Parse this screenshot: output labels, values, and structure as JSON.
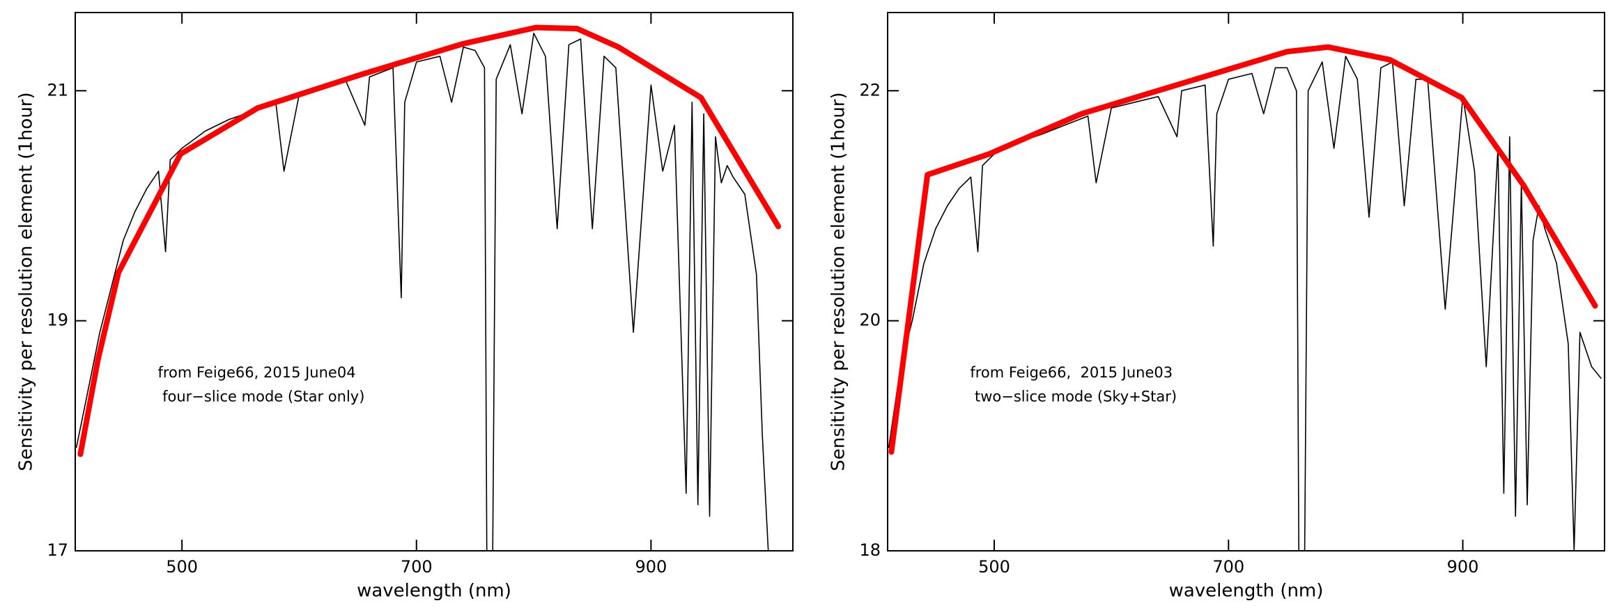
{
  "chart_data": [
    {
      "type": "line",
      "xlabel": "wavelength (nm)",
      "ylabel": "Sensitivity per resolution element (1hour)",
      "annotations": [
        "from Feige66, 2015 June04",
        " four−slice mode (Star only)"
      ],
      "xlim": [
        409,
        1021
      ],
      "ylim": [
        17,
        21.68
      ],
      "xticks": [
        500,
        700,
        900
      ],
      "yticks": [
        17,
        19,
        21
      ],
      "series": [
        {
          "color": "#000000",
          "x": [
            410,
            420,
            430,
            440,
            450,
            460,
            470,
            480,
            486,
            490,
            500,
            520,
            540,
            560,
            580,
            587,
            600,
            620,
            640,
            656,
            660,
            680,
            687,
            690,
            700,
            720,
            730,
            740,
            750,
            758,
            760,
            765,
            768,
            780,
            790,
            800,
            810,
            820,
            830,
            840,
            850,
            860,
            870,
            885,
            900,
            910,
            920,
            930,
            935,
            940,
            945,
            950,
            955,
            960,
            965,
            970,
            980,
            990,
            995,
            1000
          ],
          "values": [
            17.9,
            18.4,
            18.9,
            19.3,
            19.7,
            19.95,
            20.15,
            20.3,
            19.6,
            20.4,
            20.5,
            20.65,
            20.75,
            20.82,
            20.9,
            20.3,
            20.97,
            21.02,
            21.08,
            20.7,
            21.12,
            21.2,
            19.2,
            20.9,
            21.25,
            21.3,
            20.9,
            21.38,
            21.35,
            21.2,
            17,
            17,
            21.1,
            21.4,
            20.8,
            21.5,
            21.3,
            19.8,
            21.4,
            21.45,
            19.8,
            21.3,
            21.2,
            18.9,
            21.05,
            20.3,
            20.7,
            17.5,
            20.9,
            17.4,
            20.8,
            17.3,
            20.6,
            20.2,
            20.35,
            20.25,
            20.1,
            19.4,
            18.0,
            17.0
          ]
        },
        {
          "color": "#ff0000",
          "x": [
            413.4,
            428.3,
            445.9,
            498.7,
            564.6,
            652.5,
            740.4,
            802,
            837,
            872.3,
            942.6,
            1008.6
          ],
          "values": [
            17.84,
            18.66,
            19.42,
            20.45,
            20.85,
            21.14,
            21.41,
            21.55,
            21.54,
            21.38,
            20.94,
            19.82
          ]
        }
      ]
    },
    {
      "type": "line",
      "xlabel": "wavelength (nm)",
      "ylabel": "Sensitivity per resolution element (1hour)",
      "annotations": [
        "from Feige66,  2015 June03",
        " two−slice mode (Sky+Star)"
      ],
      "xlim": [
        409,
        1021
      ],
      "ylim": [
        18,
        22.68
      ],
      "xticks": [
        500,
        700,
        900
      ],
      "yticks": [
        18,
        20,
        22
      ],
      "series": [
        {
          "color": "#000000",
          "x": [
            410,
            420,
            430,
            440,
            450,
            460,
            470,
            480,
            486,
            490,
            500,
            520,
            540,
            560,
            580,
            587,
            600,
            620,
            640,
            656,
            660,
            680,
            687,
            690,
            700,
            720,
            730,
            740,
            750,
            758,
            760,
            765,
            768,
            780,
            790,
            800,
            810,
            820,
            830,
            840,
            850,
            860,
            870,
            885,
            900,
            910,
            920,
            930,
            935,
            940,
            945,
            950,
            955,
            960,
            965,
            970,
            980,
            990,
            995,
            1000,
            1010,
            1018
          ],
          "values": [
            18.9,
            19.6,
            20.0,
            20.5,
            20.8,
            21.0,
            21.15,
            21.25,
            20.6,
            21.35,
            21.45,
            21.55,
            21.62,
            21.7,
            21.78,
            21.2,
            21.85,
            21.9,
            21.95,
            21.6,
            22.0,
            22.05,
            20.65,
            21.8,
            22.1,
            22.15,
            21.8,
            22.2,
            22.2,
            22.0,
            18.0,
            18.0,
            22.0,
            22.25,
            21.5,
            22.3,
            22.1,
            20.9,
            22.2,
            22.25,
            21.0,
            22.1,
            22.1,
            20.1,
            21.95,
            21.3,
            19.6,
            21.5,
            18.5,
            21.6,
            18.3,
            21.2,
            18.4,
            20.7,
            21.0,
            20.8,
            20.5,
            19.8,
            18.0,
            19.9,
            19.6,
            19.5
          ]
        },
        {
          "color": "#ff0000",
          "x": [
            412.2,
            443,
            495.6,
            574.5,
            662.2,
            749.9,
            785,
            837.6,
            899,
            951.7,
            1013
          ],
          "values": [
            18.86,
            21.27,
            21.45,
            21.8,
            22.07,
            22.34,
            22.38,
            22.27,
            21.94,
            21.18,
            20.13
          ]
        }
      ]
    }
  ]
}
